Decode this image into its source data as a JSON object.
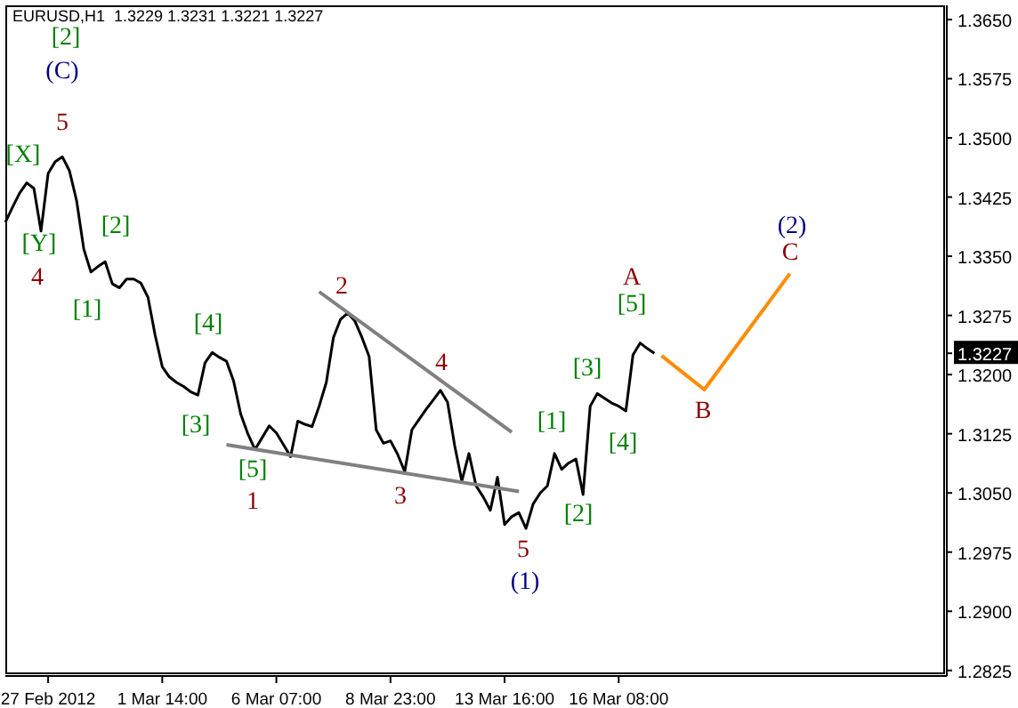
{
  "chart_data": {
    "type": "line",
    "title": "EURUSD,H1  1.3229 1.3231 1.3221 1.3227",
    "categories": [
      null,
      null,
      null,
      null,
      null,
      null,
      "27 Feb 2012",
      null,
      null,
      null,
      null,
      null,
      null,
      null,
      null,
      null,
      null,
      null,
      null,
      null,
      null,
      null,
      "1 Mar 14:00",
      null,
      null,
      null,
      null,
      null,
      null,
      null,
      null,
      null,
      null,
      null,
      null,
      null,
      null,
      null,
      "6 Mar 07:00",
      null,
      null,
      null,
      null,
      null,
      null,
      null,
      null,
      null,
      null,
      null,
      null,
      null,
      null,
      null,
      "8 Mar 23:00",
      null,
      null,
      null,
      null,
      null,
      null,
      null,
      null,
      null,
      null,
      null,
      null,
      null,
      null,
      null,
      "13 Mar 16:00",
      null,
      null,
      null,
      null,
      null,
      null,
      null,
      null,
      null,
      null,
      null,
      null,
      null,
      null,
      null,
      "16 Mar 08:00",
      null,
      null,
      null,
      null,
      null,
      null,
      null,
      null,
      null,
      null,
      null,
      null,
      null,
      null,
      null,
      null,
      null,
      null,
      null,
      null,
      null,
      null,
      null,
      null,
      null,
      null,
      null,
      null,
      null,
      null,
      null,
      null,
      null,
      null,
      null,
      null,
      null,
      null,
      null,
      null,
      null,
      null,
      null,
      null,
      null,
      null
    ],
    "ylim": [
      1.2818,
      1.3668
    ],
    "yticks": [
      1.2825,
      {
        "value": 1.29,
        "label": "1.2900"
      },
      1.2975,
      {
        "value": 1.305,
        "label": "1.3050"
      },
      1.3125,
      {
        "value": 1.32,
        "label": "1.3200"
      },
      1.3227,
      1.3275,
      {
        "value": 1.335,
        "label": "1.3350"
      },
      1.3425,
      {
        "value": 1.35,
        "label": "1.3500"
      },
      1.3575,
      {
        "value": 1.365,
        "label": "1.3650"
      }
    ],
    "marker": "none",
    "line_style": "solid",
    "series": [
      {
        "color": "#000000",
        "values": [
          1.3393,
          1.3412,
          1.343,
          1.3443,
          1.3436,
          1.3382,
          1.3455,
          1.347,
          1.3476,
          1.3458,
          1.342,
          1.3359,
          1.333,
          1.3337,
          1.3343,
          1.3315,
          1.331,
          1.3321,
          1.3321,
          1.3316,
          1.3298,
          1.325,
          1.321,
          1.3197,
          1.319,
          1.3185,
          1.3178,
          1.3174,
          1.3215,
          1.3228,
          1.3222,
          1.3217,
          1.3192,
          1.315,
          1.3125,
          1.3105,
          1.312,
          1.3135,
          1.3126,
          1.3111,
          1.3096,
          1.3141,
          1.3137,
          1.3134,
          1.316,
          1.319,
          1.3247,
          1.327,
          1.3278,
          1.3268,
          1.3247,
          1.3223,
          1.313,
          1.3113,
          1.3116,
          1.3099,
          1.3077,
          1.313,
          1.3143,
          1.3156,
          1.3168,
          1.318,
          1.3165,
          1.311,
          1.3065,
          1.31,
          1.3059,
          1.3045,
          1.3028,
          1.307,
          1.301,
          1.302,
          1.3025,
          1.3005,
          1.3036,
          1.305,
          1.3059,
          1.31,
          1.308,
          1.3088,
          1.3093,
          1.3048,
          1.316,
          1.3176,
          1.317,
          1.3164,
          1.316,
          1.3154,
          1.3225,
          1.324,
          1.3233,
          1.3227,
          null,
          null,
          null,
          null,
          null,
          null,
          null,
          null,
          null,
          null,
          null,
          null,
          null,
          null,
          null,
          null,
          null,
          null,
          null,
          null,
          null,
          null,
          null,
          null,
          null,
          null,
          null,
          null,
          null,
          null,
          null,
          null,
          null,
          null,
          null,
          null,
          null,
          null,
          null,
          null,
          null
        ]
      },
      {
        "color": "#ff8c00",
        "values": [
          null,
          null,
          null,
          null,
          null,
          null,
          null,
          null,
          null,
          null,
          null,
          null,
          null,
          null,
          null,
          null,
          null,
          null,
          null,
          null,
          null,
          null,
          null,
          null,
          null,
          null,
          null,
          null,
          null,
          null,
          null,
          null,
          null,
          null,
          null,
          null,
          null,
          null,
          null,
          null,
          null,
          null,
          null,
          null,
          null,
          null,
          null,
          null,
          null,
          null,
          null,
          null,
          null,
          null,
          null,
          null,
          null,
          null,
          null,
          null,
          null,
          null,
          null,
          null,
          null,
          null,
          null,
          null,
          null,
          null,
          null,
          null,
          null,
          null,
          null,
          null,
          null,
          null,
          null,
          null,
          null,
          null,
          null,
          null,
          null,
          null,
          null,
          null,
          null,
          null,
          null,
          null,
          1.3224,
          null,
          null,
          null,
          null,
          null,
          1.3181,
          null,
          null,
          null,
          null,
          null,
          null,
          null,
          null,
          null,
          null,
          null,
          1.3328,
          null,
          null,
          null,
          null,
          null,
          null,
          null,
          null,
          null,
          null,
          null,
          null,
          null,
          null,
          null,
          null,
          null,
          null,
          null,
          null,
          null,
          null
        ]
      },
      {
        "color": "#808080",
        "values": [
          null,
          null,
          null,
          null,
          null,
          null,
          null,
          null,
          null,
          null,
          null,
          null,
          null,
          null,
          null,
          null,
          null,
          null,
          null,
          null,
          null,
          null,
          null,
          null,
          null,
          null,
          null,
          null,
          null,
          null,
          null,
          null,
          null,
          null,
          null,
          null,
          null,
          null,
          null,
          null,
          null,
          null,
          null,
          null,
          1.3305,
          null,
          null,
          null,
          null,
          null,
          null,
          null,
          null,
          null,
          null,
          null,
          null,
          null,
          null,
          null,
          null,
          null,
          null,
          null,
          null,
          null,
          null,
          null,
          null,
          null,
          null,
          1.3127,
          null,
          null,
          null,
          null,
          null,
          null,
          null,
          null,
          null,
          null,
          null,
          null,
          null,
          null,
          null,
          null,
          null,
          null,
          null,
          null,
          null,
          null,
          null,
          null,
          null,
          null,
          null,
          null,
          null,
          null,
          null,
          null,
          null,
          null,
          null,
          null,
          null,
          null,
          null,
          null,
          null,
          null,
          null,
          null,
          null,
          null,
          null,
          null,
          null,
          null,
          null,
          null,
          null,
          null,
          null,
          null,
          null,
          null,
          null,
          null,
          null
        ]
      },
      {
        "color": "#808080",
        "values": [
          null,
          null,
          null,
          null,
          null,
          null,
          null,
          null,
          null,
          null,
          null,
          null,
          null,
          null,
          null,
          null,
          null,
          null,
          null,
          null,
          null,
          null,
          null,
          null,
          null,
          null,
          null,
          null,
          null,
          null,
          null,
          1.3111,
          null,
          null,
          null,
          null,
          null,
          null,
          null,
          null,
          null,
          null,
          null,
          null,
          null,
          null,
          null,
          null,
          null,
          null,
          null,
          null,
          null,
          null,
          null,
          null,
          null,
          null,
          null,
          null,
          null,
          null,
          null,
          null,
          null,
          null,
          null,
          null,
          null,
          null,
          null,
          null,
          1.3052,
          null,
          null,
          null,
          null,
          null,
          null,
          null,
          null,
          null,
          null,
          null,
          null,
          null,
          null,
          null,
          null,
          null,
          null,
          null,
          null,
          null,
          null,
          null,
          null,
          null,
          null,
          null,
          null,
          null,
          null,
          null,
          null,
          null,
          null,
          null,
          null,
          null,
          null,
          null,
          null,
          null,
          null,
          null,
          null,
          null,
          null,
          null,
          null,
          null,
          null,
          null,
          null,
          null,
          null,
          null,
          null,
          null,
          null,
          null,
          null
        ]
      }
    ],
    "annotations": [
      "[2]",
      "(C)",
      "5",
      "[X]",
      "[Y]",
      "4",
      "[2]",
      "[1]",
      "[4]",
      "[3]",
      "[5]",
      "1",
      "2",
      "4",
      "3",
      "5",
      "(1)",
      "[1]",
      "[2]",
      "[3]",
      "[4]",
      "[5]",
      "A",
      "B",
      "(2)",
      "C"
    ]
  }
}
